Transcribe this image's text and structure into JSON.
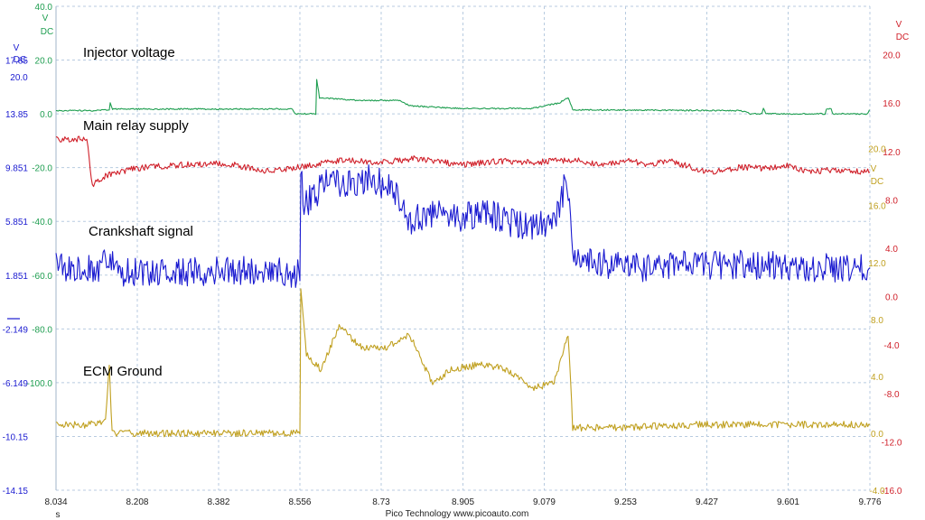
{
  "chart_data": {
    "type": "line",
    "footer": "Pico Technology   www.picoauto.com",
    "x_unit": "s",
    "x_ticks": [
      "8.034",
      "8.208",
      "8.382",
      "8.556",
      "8.73",
      "8.905",
      "9.079",
      "9.253",
      "9.427",
      "9.601",
      "9.776"
    ],
    "xlim": [
      8.034,
      9.776
    ],
    "axes": [
      {
        "id": "blue",
        "color": "#1a1ad0",
        "side": "left",
        "unit": [
          "V",
          "DC"
        ],
        "ylim": [
          -14.15,
          21.85
        ],
        "ticks": [
          "17.85",
          "13.85",
          "9.851",
          "5.851",
          "1.851",
          "-2.149",
          "-6.149",
          "-10.15",
          "-14.15"
        ],
        "extra_label": "20.0"
      },
      {
        "id": "green",
        "color": "#1e9e50",
        "side": "left",
        "unit": [
          "V",
          "DC"
        ],
        "ylim": [
          -140,
          40
        ],
        "ticks": [
          "40.0",
          "20.0",
          "0.0",
          "-20.0",
          "-40.0",
          "-60.0",
          "-80.0",
          "-100.0"
        ]
      },
      {
        "id": "red",
        "color": "#d0202a",
        "side": "right",
        "unit": [
          "V",
          "DC"
        ],
        "ylim": [
          -16,
          24
        ],
        "ticks": [
          "20.0",
          "16.0",
          "12.0",
          "8.0",
          "4.0",
          "0.0",
          "-4.0",
          "-8.0",
          "-12.0",
          "-16.0"
        ]
      },
      {
        "id": "gold",
        "color": "#c0a020",
        "side": "right",
        "unit": [
          "V",
          "DC"
        ],
        "ylim": [
          -4,
          30
        ],
        "ticks": [
          "20.0",
          "16.0",
          "12.0",
          "8.0",
          "4.0",
          "0.0",
          "-4.0"
        ]
      }
    ],
    "series": [
      {
        "name": "Injector voltage",
        "axis": "green",
        "color": "#1e9e50",
        "points": [
          [
            8.034,
            1.2
          ],
          [
            8.114,
            1.2
          ],
          [
            8.115,
            1.2
          ],
          [
            8.148,
            1.5
          ],
          [
            8.15,
            4
          ],
          [
            8.155,
            1.8
          ],
          [
            8.54,
            1.8
          ],
          [
            8.545,
            0
          ],
          [
            8.59,
            0
          ],
          [
            8.592,
            13
          ],
          [
            8.598,
            6
          ],
          [
            8.68,
            5
          ],
          [
            8.77,
            5
          ],
          [
            8.79,
            3
          ],
          [
            8.905,
            2
          ],
          [
            9.05,
            2
          ],
          [
            9.11,
            4
          ],
          [
            9.13,
            6
          ],
          [
            9.14,
            1.5
          ],
          [
            9.5,
            1.2
          ],
          [
            9.52,
            0
          ],
          [
            9.545,
            0
          ],
          [
            9.548,
            2
          ],
          [
            9.553,
            0
          ],
          [
            9.68,
            0
          ],
          [
            9.683,
            2
          ],
          [
            9.693,
            2
          ],
          [
            9.696,
            0
          ],
          [
            9.77,
            0
          ],
          [
            9.775,
            1.5
          ]
        ],
        "noise": 0.25
      },
      {
        "name": "Main relay supply",
        "axis": "red",
        "color": "#d0202a",
        "points": [
          [
            8.034,
            13.0
          ],
          [
            8.1,
            13.0
          ],
          [
            8.112,
            9.2
          ],
          [
            8.14,
            10.0
          ],
          [
            8.2,
            10.6
          ],
          [
            8.3,
            10.9
          ],
          [
            8.4,
            11.0
          ],
          [
            8.48,
            10.4
          ],
          [
            8.556,
            10.7
          ],
          [
            8.65,
            11.3
          ],
          [
            8.73,
            11.1
          ],
          [
            8.8,
            11.4
          ],
          [
            8.905,
            10.9
          ],
          [
            8.98,
            11.2
          ],
          [
            9.05,
            11.1
          ],
          [
            9.15,
            11.3
          ],
          [
            9.2,
            10.8
          ],
          [
            9.253,
            11.3
          ],
          [
            9.3,
            10.9
          ],
          [
            9.35,
            11.2
          ],
          [
            9.427,
            10.3
          ],
          [
            9.5,
            10.7
          ],
          [
            9.55,
            10.6
          ],
          [
            9.601,
            10.8
          ],
          [
            9.65,
            10.3
          ],
          [
            9.7,
            10.5
          ],
          [
            9.776,
            10.3
          ]
        ],
        "noise": 0.25
      },
      {
        "name": "Crankshaft signal",
        "axis": "blue",
        "color": "#1a1ad0",
        "points": [
          [
            8.034,
            2.4
          ],
          [
            8.1,
            2.4
          ],
          [
            8.12,
            2.2
          ],
          [
            8.135,
            2.6
          ],
          [
            8.145,
            3.6
          ],
          [
            8.16,
            2.0
          ],
          [
            8.25,
            2.0
          ],
          [
            8.35,
            2.1
          ],
          [
            8.45,
            2.2
          ],
          [
            8.556,
            2.0
          ],
          [
            8.558,
            9.5
          ],
          [
            8.565,
            7.0
          ],
          [
            8.61,
            8.6
          ],
          [
            8.66,
            8.8
          ],
          [
            8.71,
            9.0
          ],
          [
            8.76,
            8.2
          ],
          [
            8.79,
            5.8
          ],
          [
            8.84,
            6.5
          ],
          [
            8.9,
            6.0
          ],
          [
            8.95,
            6.7
          ],
          [
            9.0,
            5.8
          ],
          [
            9.06,
            5.5
          ],
          [
            9.1,
            6.0
          ],
          [
            9.128,
            9.0
          ],
          [
            9.14,
            3.5
          ],
          [
            9.253,
            2.3
          ],
          [
            9.35,
            2.6
          ],
          [
            9.427,
            2.6
          ],
          [
            9.55,
            2.6
          ],
          [
            9.65,
            2.4
          ],
          [
            9.776,
            2.4
          ]
        ],
        "noise": 1.1
      },
      {
        "name": "ECM Ground",
        "axis": "gold",
        "color": "#c0a020",
        "points": [
          [
            8.034,
            0.6
          ],
          [
            8.1,
            0.6
          ],
          [
            8.14,
            0.9
          ],
          [
            8.148,
            5.0
          ],
          [
            8.154,
            0.0
          ],
          [
            8.556,
            0.0
          ],
          [
            8.558,
            10.0
          ],
          [
            8.57,
            5.5
          ],
          [
            8.6,
            4.5
          ],
          [
            8.64,
            7.5
          ],
          [
            8.69,
            6.0
          ],
          [
            8.74,
            6.0
          ],
          [
            8.79,
            7.0
          ],
          [
            8.84,
            3.5
          ],
          [
            8.88,
            4.5
          ],
          [
            8.94,
            4.8
          ],
          [
            9.0,
            4.5
          ],
          [
            9.05,
            3.2
          ],
          [
            9.1,
            3.5
          ],
          [
            9.13,
            7.0
          ],
          [
            9.14,
            0.4
          ],
          [
            9.253,
            0.4
          ],
          [
            9.4,
            0.6
          ],
          [
            9.55,
            0.6
          ],
          [
            9.776,
            0.6
          ]
        ],
        "noise": 0.25
      }
    ]
  }
}
